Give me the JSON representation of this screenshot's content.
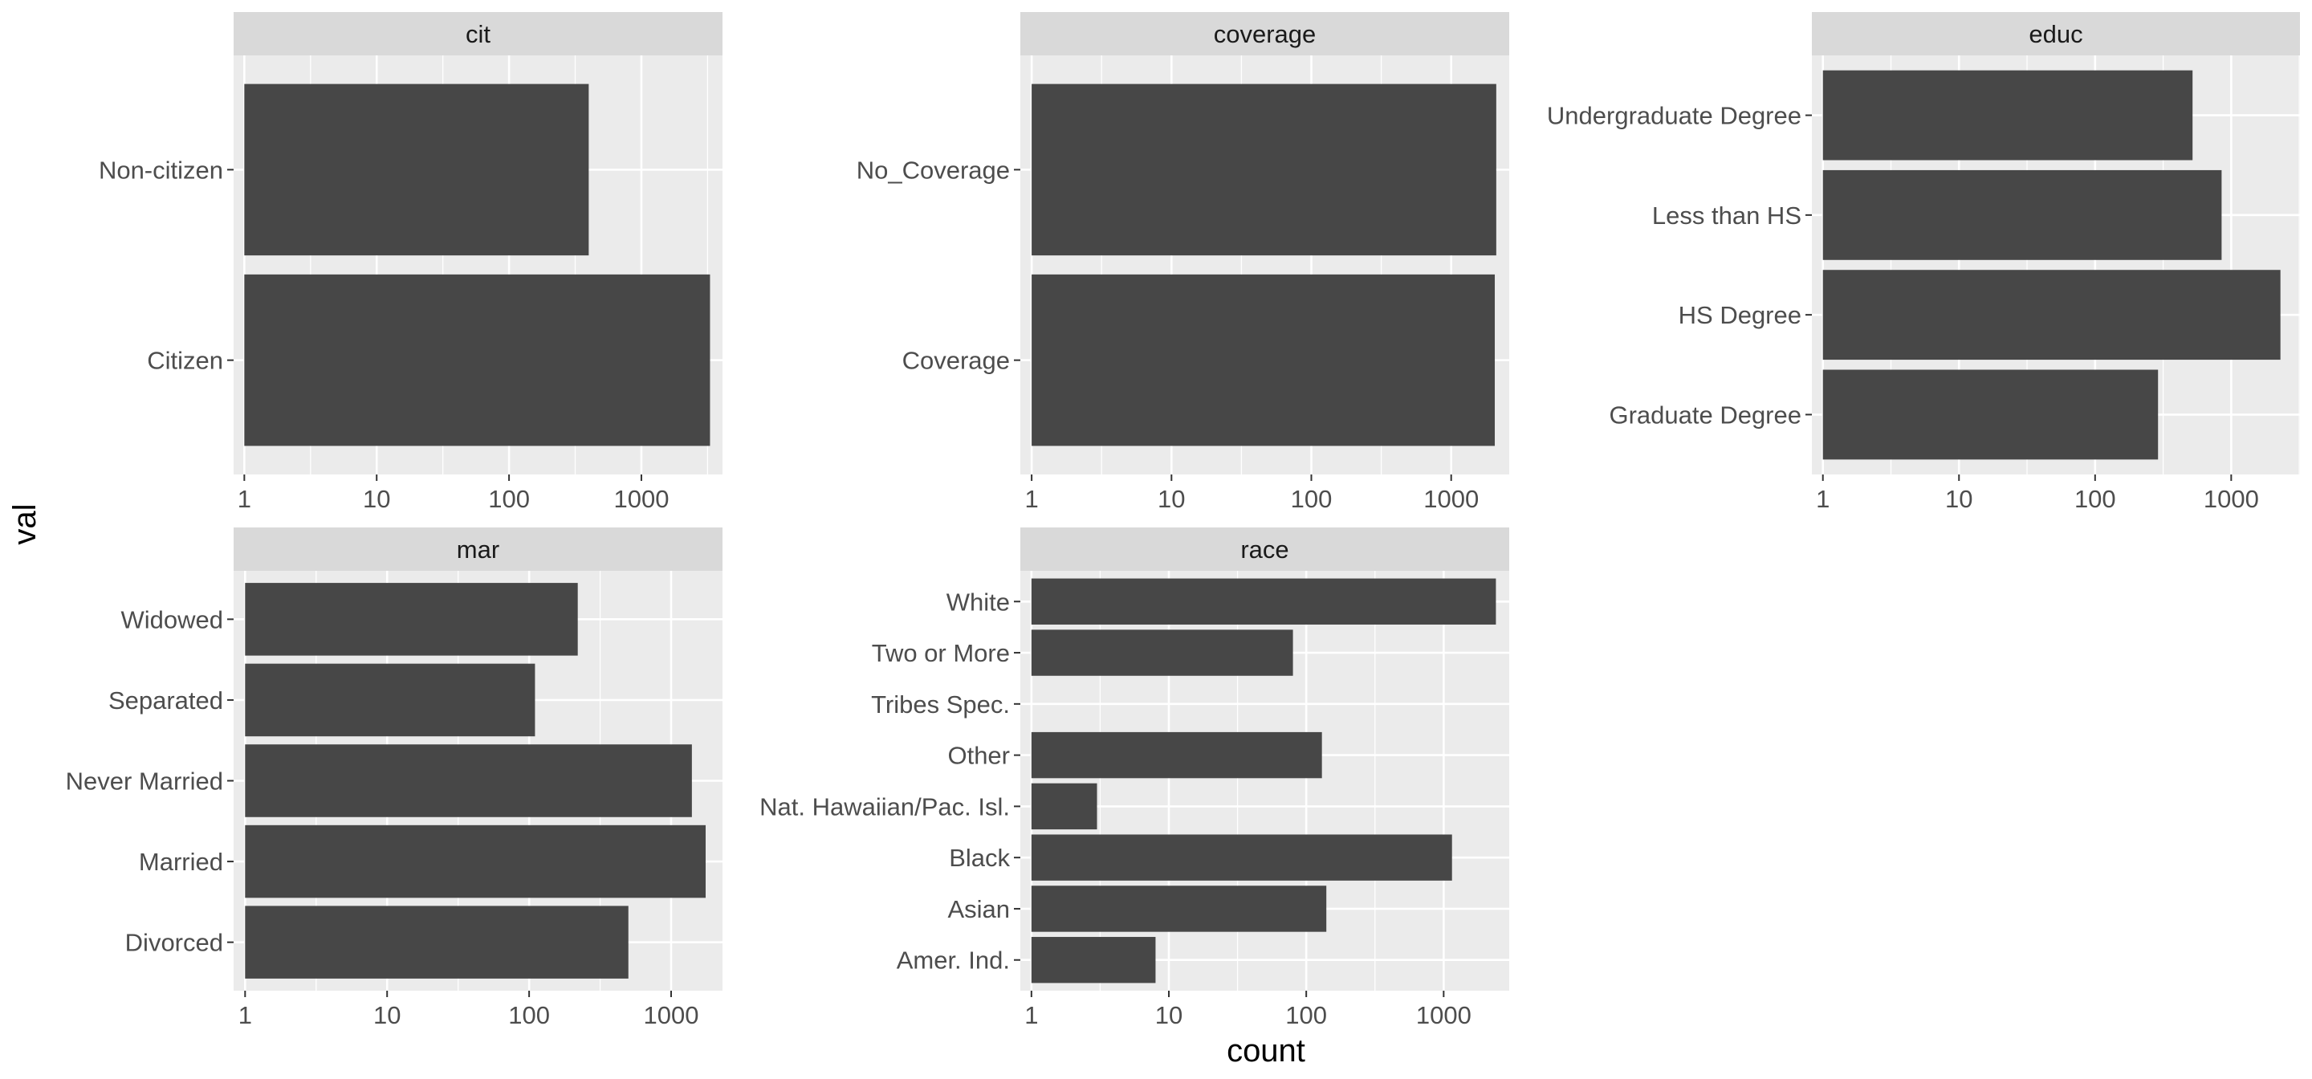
{
  "chart_data": {
    "type": "bar",
    "orientation": "horizontal",
    "faceted": true,
    "facet_layout": {
      "columns": 3,
      "rows": 2
    },
    "xlabel": "count",
    "ylabel": "val",
    "x_scale": "log10",
    "x_ticks": [
      1,
      10,
      100,
      1000
    ],
    "x_tick_labels": [
      "1",
      "10",
      "100",
      "1000"
    ],
    "grid": true,
    "colors": {
      "bar": "#474747",
      "panel": "#ebebeb",
      "strip": "#d9d9d9",
      "grid": "#ffffff"
    },
    "facets": [
      {
        "title": "cit",
        "xlim": [
          0.83,
          4100
        ],
        "categories": [
          "Non-citizen",
          "Citizen"
        ],
        "values": [
          400,
          3300
        ]
      },
      {
        "title": "coverage",
        "xlim": [
          0.83,
          2600
        ],
        "categories": [
          "No_Coverage",
          "Coverage"
        ],
        "values": [
          2100,
          2050
        ]
      },
      {
        "title": "educ",
        "xlim": [
          0.83,
          3200
        ],
        "categories": [
          "Undergraduate Degree",
          "Less than HS",
          "HS Degree",
          "Graduate Degree"
        ],
        "values": [
          520,
          850,
          2300,
          290
        ]
      },
      {
        "title": "mar",
        "xlim": [
          0.83,
          2300
        ],
        "categories": [
          "Widowed",
          "Separated",
          "Never Married",
          "Married",
          "Divorced"
        ],
        "values": [
          220,
          110,
          1400,
          1750,
          500
        ]
      },
      {
        "title": "race",
        "xlim": [
          0.83,
          3000
        ],
        "categories": [
          "White",
          "Two or More",
          "Tribes Spec.",
          "Other",
          "Nat. Hawaiian/Pac. Isl.",
          "Black",
          "Asian",
          "Amer. Ind."
        ],
        "values": [
          2400,
          80,
          null,
          130,
          3,
          1150,
          140,
          8
        ]
      }
    ]
  }
}
